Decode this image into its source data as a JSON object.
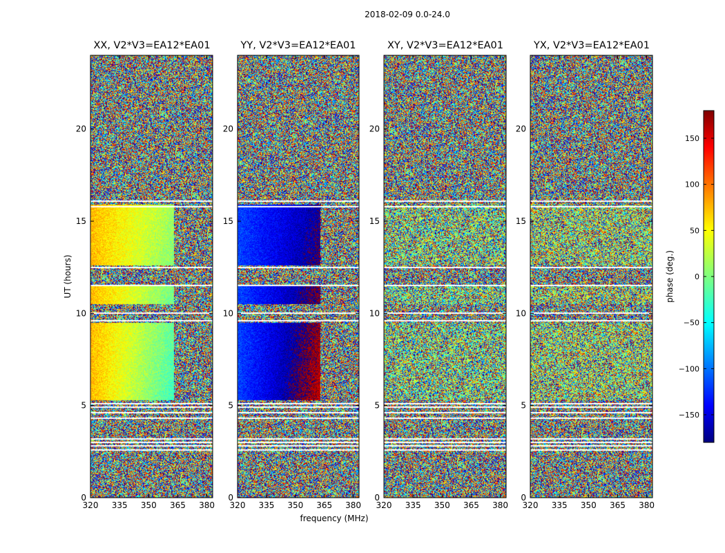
{
  "chart_data": {
    "type": "heatmap",
    "title": "2018-02-09 0.0-24.0",
    "ylabel": "UT (hours)",
    "xlabel": "frequency (MHz)",
    "ylim": [
      0,
      24
    ],
    "xlim": [
      320,
      383
    ],
    "y_ticks": [
      0,
      5,
      10,
      15,
      20
    ],
    "x_ticks": [
      320,
      335,
      350,
      365,
      380
    ],
    "panels": [
      {
        "title": "XX, V2*V3=EA12*EA01",
        "signal": "strong",
        "phase_offset": 70
      },
      {
        "title": "YY, V2*V3=EA12*EA01",
        "signal": "strong",
        "phase_offset": -110
      },
      {
        "title": "XY, V2*V3=EA12*EA01",
        "signal": "noise",
        "phase_offset": 0
      },
      {
        "title": "YX, V2*V3=EA12*EA01",
        "signal": "noise",
        "phase_offset": 20
      }
    ],
    "colorbar": {
      "label": "phase (deg.)",
      "range": [
        -180,
        180
      ],
      "ticks": [
        150,
        100,
        50,
        0,
        -50,
        -100,
        -150
      ],
      "tick_labels": [
        "150",
        "100",
        "50",
        "0",
        "−50",
        "−100",
        "−150"
      ],
      "colormap": "jet"
    },
    "flagged_ut_hours": [
      16.1,
      15.8,
      12.5,
      11.5,
      10.0,
      9.6,
      5.1,
      4.9,
      4.6,
      4.3,
      3.2,
      3.0,
      2.8,
      2.6
    ]
  }
}
